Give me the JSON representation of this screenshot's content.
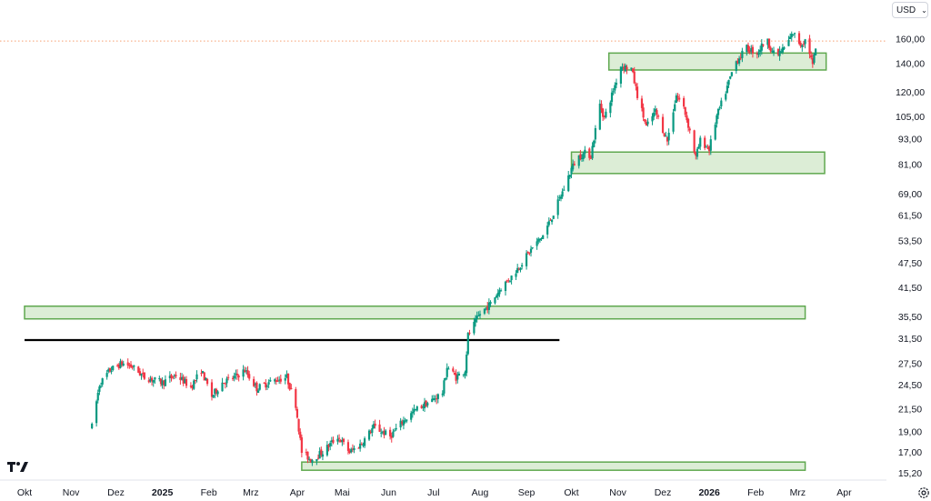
{
  "toolbar": {
    "currency": "USD",
    "currency_icon": "chevron-down-icon"
  },
  "brand": {
    "logo": "tradingview-logo-icon"
  },
  "settings": {
    "icon": "settings-gear-icon"
  },
  "colors": {
    "up": "#089981",
    "down": "#f23645",
    "zone_fill": "#dcedd6",
    "zone_border": "#5fa84f",
    "resistance": "#000000",
    "price_line": "#f7a072",
    "axis_text": "#131722"
  },
  "chart_data": {
    "type": "candlestick",
    "y_scale": "log",
    "ylim": [
      14.6,
      186
    ],
    "xlim": [
      "2024-10-01",
      "2026-04-25"
    ],
    "y_ticks": [
      {
        "value": 160,
        "label": "160,00"
      },
      {
        "value": 140,
        "label": "140,00"
      },
      {
        "value": 120,
        "label": "120,00"
      },
      {
        "value": 105,
        "label": "105,00"
      },
      {
        "value": 93,
        "label": "93,00"
      },
      {
        "value": 81,
        "label": "81,00"
      },
      {
        "value": 69,
        "label": "69,00"
      },
      {
        "value": 61.5,
        "label": "61,50"
      },
      {
        "value": 53.5,
        "label": "53,50"
      },
      {
        "value": 47.5,
        "label": "47,50"
      },
      {
        "value": 41.5,
        "label": "41,50"
      },
      {
        "value": 35.5,
        "label": "35,50"
      },
      {
        "value": 31.5,
        "label": "31,50"
      },
      {
        "value": 27.5,
        "label": "27,50"
      },
      {
        "value": 24.5,
        "label": "24,50"
      },
      {
        "value": 21.5,
        "label": "21,50"
      },
      {
        "value": 19,
        "label": "19,00"
      },
      {
        "value": 17,
        "label": "17,00"
      },
      {
        "value": 15.2,
        "label": "15,20"
      }
    ],
    "x_ticks": [
      {
        "date": "2024-10-01",
        "label": "Okt",
        "bold": false
      },
      {
        "date": "2024-11-01",
        "label": "Nov",
        "bold": false
      },
      {
        "date": "2024-12-01",
        "label": "Dez",
        "bold": false
      },
      {
        "date": "2025-01-01",
        "label": "2025",
        "bold": true
      },
      {
        "date": "2025-02-01",
        "label": "Feb",
        "bold": false
      },
      {
        "date": "2025-03-01",
        "label": "Mrz",
        "bold": false
      },
      {
        "date": "2025-04-01",
        "label": "Apr",
        "bold": false
      },
      {
        "date": "2025-05-01",
        "label": "Mai",
        "bold": false
      },
      {
        "date": "2025-06-01",
        "label": "Jun",
        "bold": false
      },
      {
        "date": "2025-07-01",
        "label": "Jul",
        "bold": false
      },
      {
        "date": "2025-08-01",
        "label": "Aug",
        "bold": false
      },
      {
        "date": "2025-09-01",
        "label": "Sep",
        "bold": false
      },
      {
        "date": "2025-10-01",
        "label": "Okt",
        "bold": false
      },
      {
        "date": "2025-11-01",
        "label": "Nov",
        "bold": false
      },
      {
        "date": "2025-12-01",
        "label": "Dez",
        "bold": false
      },
      {
        "date": "2026-01-01",
        "label": "2026",
        "bold": true
      },
      {
        "date": "2026-02-01",
        "label": "Feb",
        "bold": false
      },
      {
        "date": "2026-03-01",
        "label": "Mrz",
        "bold": false
      },
      {
        "date": "2026-04-01",
        "label": "Apr",
        "bold": false
      }
    ],
    "price_path": [
      [
        "2024-11-15",
        19.5
      ],
      [
        "2024-11-20",
        24.5
      ],
      [
        "2024-11-27",
        26.5
      ],
      [
        "2024-12-05",
        27.5
      ],
      [
        "2024-12-12",
        27.0
      ],
      [
        "2024-12-20",
        25.5
      ],
      [
        "2025-01-01",
        24.8
      ],
      [
        "2025-01-10",
        25.8
      ],
      [
        "2025-01-20",
        24.2
      ],
      [
        "2025-01-27",
        26.5
      ],
      [
        "2025-02-03",
        23.0
      ],
      [
        "2025-02-10",
        24.8
      ],
      [
        "2025-02-18",
        25.5
      ],
      [
        "2025-02-25",
        26.5
      ],
      [
        "2025-03-05",
        24.0
      ],
      [
        "2025-03-15",
        25.0
      ],
      [
        "2025-03-25",
        25.5
      ],
      [
        "2025-03-31",
        22.0
      ],
      [
        "2025-04-04",
        17.0
      ],
      [
        "2025-04-10",
        16.3
      ],
      [
        "2025-04-18",
        17.0
      ],
      [
        "2025-04-28",
        18.5
      ],
      [
        "2025-05-06",
        17.0
      ],
      [
        "2025-05-14",
        17.8
      ],
      [
        "2025-05-22",
        19.5
      ],
      [
        "2025-06-02",
        18.5
      ],
      [
        "2025-06-10",
        20.0
      ],
      [
        "2025-06-20",
        21.5
      ],
      [
        "2025-06-30",
        22.5
      ],
      [
        "2025-07-07",
        23.5
      ],
      [
        "2025-07-10",
        27.0
      ],
      [
        "2025-07-16",
        25.5
      ],
      [
        "2025-07-22",
        26.5
      ],
      [
        "2025-07-24",
        32.0
      ],
      [
        "2025-08-01",
        36.0
      ],
      [
        "2025-08-08",
        38.0
      ],
      [
        "2025-08-15",
        41.5
      ],
      [
        "2025-08-22",
        44.0
      ],
      [
        "2025-08-29",
        47.5
      ],
      [
        "2025-09-05",
        51.5
      ],
      [
        "2025-09-12",
        55.0
      ],
      [
        "2025-09-19",
        62.0
      ],
      [
        "2025-09-26",
        71.0
      ],
      [
        "2025-10-01",
        79.0
      ],
      [
        "2025-10-05",
        84.0
      ],
      [
        "2025-10-10",
        86.0
      ],
      [
        "2025-10-14",
        85.0
      ],
      [
        "2025-10-20",
        112.0
      ],
      [
        "2025-10-23",
        104.0
      ],
      [
        "2025-10-28",
        118.0
      ],
      [
        "2025-11-03",
        138.0
      ],
      [
        "2025-11-10",
        136.0
      ],
      [
        "2025-11-14",
        118.0
      ],
      [
        "2025-11-20",
        99.0
      ],
      [
        "2025-11-26",
        108.0
      ],
      [
        "2025-12-04",
        92.0
      ],
      [
        "2025-12-10",
        118.0
      ],
      [
        "2025-12-15",
        110.0
      ],
      [
        "2025-12-19",
        97.0
      ],
      [
        "2025-12-23",
        84.0
      ],
      [
        "2025-12-26",
        92.0
      ],
      [
        "2026-01-01",
        88.0
      ],
      [
        "2026-01-06",
        105.0
      ],
      [
        "2026-01-12",
        120.0
      ],
      [
        "2026-01-18",
        140.0
      ],
      [
        "2026-01-26",
        152.0
      ],
      [
        "2026-02-02",
        148.0
      ],
      [
        "2026-02-08",
        160.0
      ],
      [
        "2026-02-14",
        145.0
      ],
      [
        "2026-02-20",
        152.0
      ],
      [
        "2026-02-26",
        165.0
      ],
      [
        "2026-03-03",
        155.0
      ],
      [
        "2026-03-07",
        160.0
      ],
      [
        "2026-03-11",
        138.0
      ],
      [
        "2026-03-13",
        152.0
      ]
    ],
    "zones": [
      {
        "name": "zone-top",
        "x0": "2025-10-26",
        "x1": "2026-03-20",
        "y0": 135,
        "y1": 148
      },
      {
        "name": "zone-upper",
        "x0": "2025-10-01",
        "x1": "2026-03-19",
        "y0": 77,
        "y1": 86.5
      },
      {
        "name": "zone-middle",
        "x0": "2024-10-01",
        "x1": "2026-03-06",
        "y0": 35,
        "y1": 37.5
      },
      {
        "name": "zone-bottom",
        "x0": "2025-04-04",
        "x1": "2026-03-06",
        "y0": 15.4,
        "y1": 16.1
      }
    ],
    "lines": [
      {
        "name": "resistance-line",
        "x0": "2024-10-01",
        "x1": "2025-09-23",
        "y": 31.2
      }
    ],
    "last_price": 158
  }
}
